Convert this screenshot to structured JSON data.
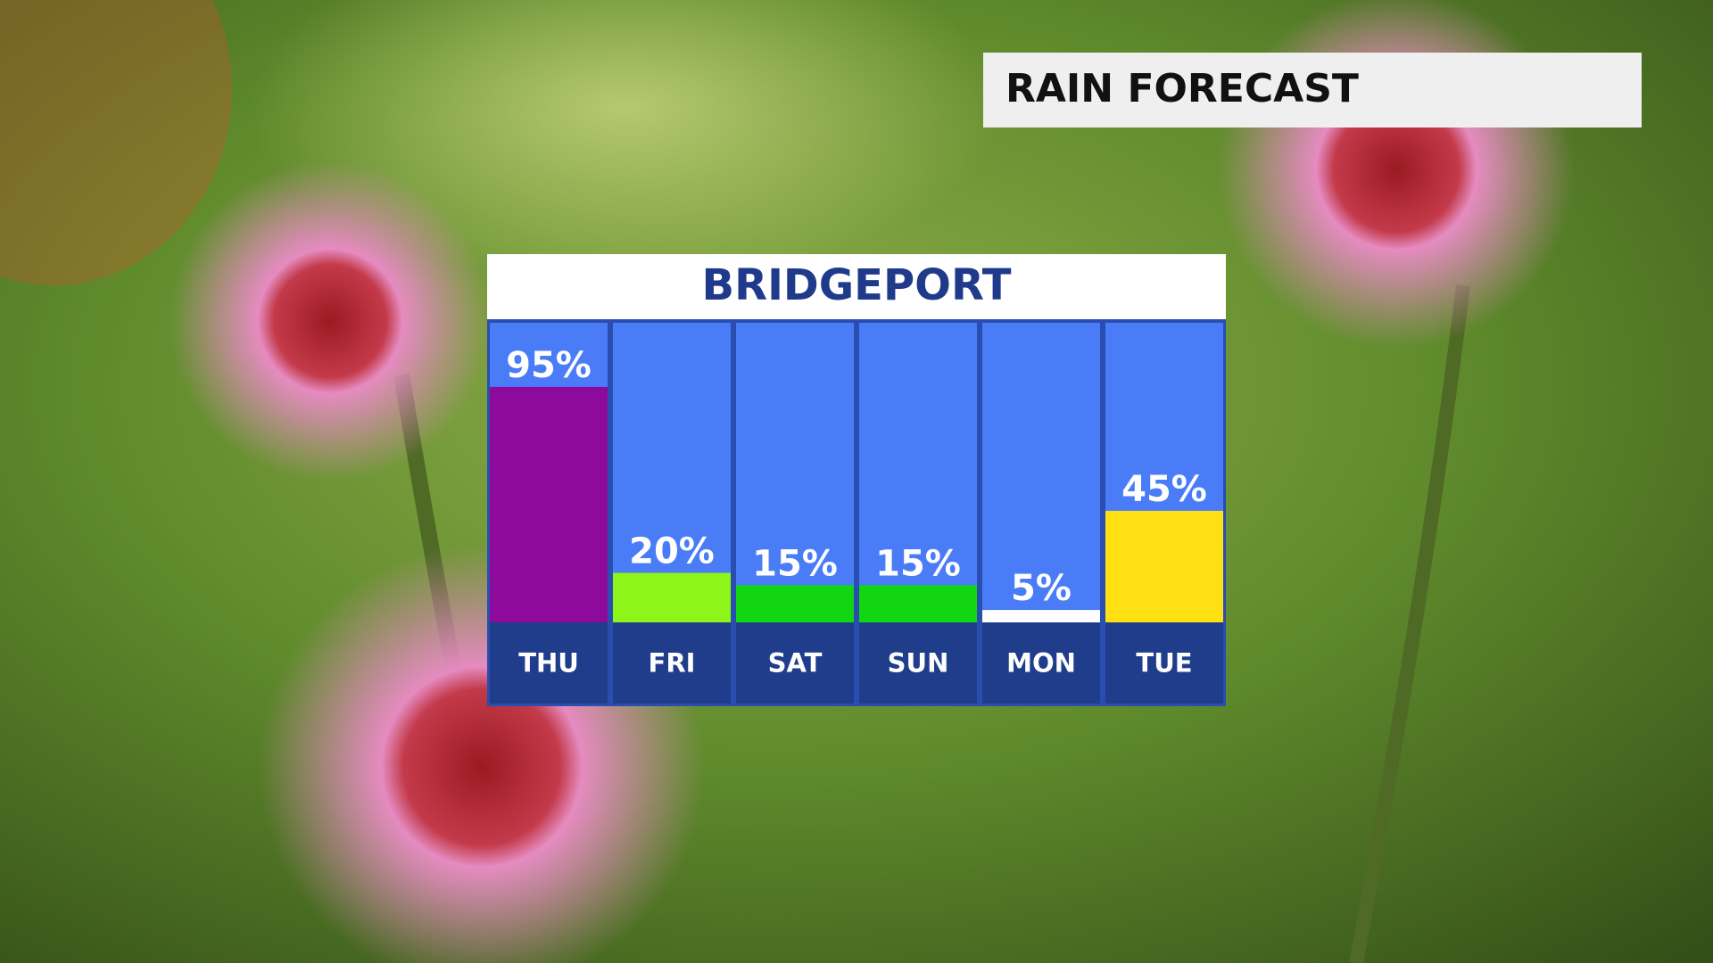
{
  "header": {
    "title": "RAIN FORECAST"
  },
  "chart_data": {
    "type": "bar",
    "title": "BRIDGEPORT",
    "categories": [
      "THU",
      "FRI",
      "SAT",
      "SUN",
      "MON",
      "TUE"
    ],
    "values": [
      95,
      20,
      15,
      15,
      5,
      45
    ],
    "value_labels": [
      "95%",
      "20%",
      "15%",
      "15%",
      "5%",
      "45%"
    ],
    "colors": [
      "#8e0a9c",
      "#8ef51a",
      "#12d612",
      "#12d612",
      "#ffffff",
      "#ffe012"
    ]
  }
}
